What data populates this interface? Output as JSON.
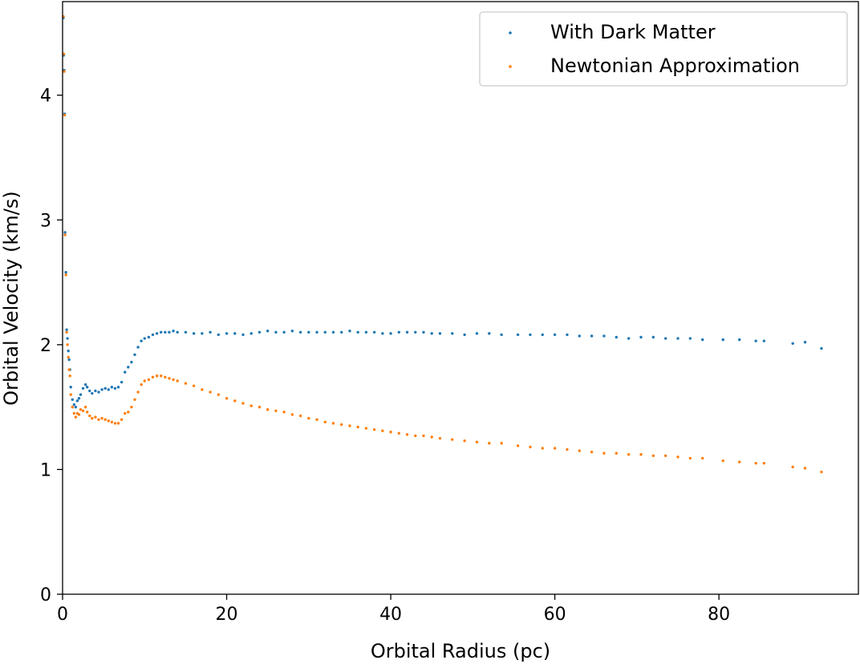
{
  "chart_data": {
    "type": "scatter",
    "title": "",
    "xlabel": "Orbital Radius (pc)",
    "ylabel": "Orbital Velocity (km/s)",
    "xlim": [
      0,
      97
    ],
    "ylim": [
      0,
      4.75
    ],
    "x_ticks": [
      0,
      20,
      40,
      60,
      80
    ],
    "y_ticks": [
      0,
      1,
      2,
      3,
      4
    ],
    "grid": false,
    "legend_position": "top-right",
    "series": [
      {
        "name": "With Dark Matter",
        "color": "#1f77b4",
        "x": [
          0.1,
          0.15,
          0.2,
          0.25,
          0.3,
          0.4,
          0.5,
          0.6,
          0.7,
          0.8,
          0.9,
          1.0,
          1.2,
          1.4,
          1.6,
          1.8,
          2.0,
          2.2,
          2.5,
          2.8,
          3.0,
          3.3,
          3.6,
          4.0,
          4.4,
          4.8,
          5.2,
          5.6,
          6.0,
          6.4,
          6.8,
          7.2,
          7.6,
          8.0,
          8.4,
          8.8,
          9.2,
          9.6,
          10.0,
          10.5,
          11.0,
          11.5,
          12.0,
          12.5,
          13.0,
          13.5,
          14.0,
          15.0,
          16.0,
          17.0,
          18.0,
          19.0,
          20.0,
          21.0,
          22.0,
          23.0,
          24.0,
          25.0,
          26.0,
          27.0,
          28.0,
          29.0,
          30.0,
          31.0,
          32.0,
          33.0,
          34.0,
          35.0,
          36.0,
          37.0,
          38.0,
          39.0,
          40.0,
          41.0,
          42.0,
          43.0,
          44.0,
          45.0,
          46.0,
          47.5,
          49.0,
          50.5,
          52.0,
          53.5,
          55.5,
          57.0,
          58.5,
          60.0,
          61.5,
          63.0,
          64.5,
          66.0,
          67.5,
          69.0,
          70.5,
          72.0,
          73.5,
          75.0,
          76.5,
          78.0,
          80.5,
          82.5,
          84.5,
          85.5,
          89.0,
          90.5,
          92.5
        ],
        "y": [
          4.62,
          4.32,
          4.2,
          3.85,
          2.9,
          2.58,
          2.12,
          2.05,
          1.95,
          1.88,
          1.8,
          1.66,
          1.56,
          1.52,
          1.5,
          1.55,
          1.57,
          1.6,
          1.65,
          1.68,
          1.66,
          1.63,
          1.61,
          1.63,
          1.62,
          1.64,
          1.65,
          1.64,
          1.66,
          1.65,
          1.66,
          1.7,
          1.78,
          1.82,
          1.86,
          1.92,
          1.98,
          2.03,
          2.05,
          2.06,
          2.08,
          2.09,
          2.1,
          2.1,
          2.1,
          2.11,
          2.1,
          2.1,
          2.09,
          2.09,
          2.1,
          2.08,
          2.09,
          2.09,
          2.08,
          2.09,
          2.1,
          2.11,
          2.1,
          2.1,
          2.11,
          2.1,
          2.1,
          2.1,
          2.1,
          2.1,
          2.1,
          2.11,
          2.1,
          2.1,
          2.1,
          2.09,
          2.09,
          2.1,
          2.1,
          2.1,
          2.1,
          2.09,
          2.09,
          2.09,
          2.08,
          2.09,
          2.09,
          2.08,
          2.08,
          2.08,
          2.08,
          2.08,
          2.08,
          2.07,
          2.07,
          2.07,
          2.06,
          2.05,
          2.06,
          2.06,
          2.05,
          2.05,
          2.05,
          2.04,
          2.04,
          2.04,
          2.03,
          2.03,
          2.01,
          2.02,
          1.97
        ]
      },
      {
        "name": "Newtonian Approximation",
        "color": "#ff7f0e",
        "x": [
          0.1,
          0.15,
          0.2,
          0.25,
          0.3,
          0.4,
          0.5,
          0.6,
          0.7,
          0.8,
          0.9,
          1.0,
          1.2,
          1.4,
          1.6,
          1.8,
          2.0,
          2.2,
          2.5,
          2.8,
          3.0,
          3.3,
          3.6,
          4.0,
          4.4,
          4.8,
          5.2,
          5.6,
          6.0,
          6.4,
          6.8,
          7.2,
          7.6,
          8.0,
          8.4,
          8.8,
          9.2,
          9.6,
          10.0,
          10.5,
          11.0,
          11.5,
          12.0,
          12.5,
          13.0,
          13.5,
          14.0,
          15.0,
          16.0,
          17.0,
          18.0,
          19.0,
          20.0,
          21.0,
          22.0,
          23.0,
          24.0,
          25.0,
          26.0,
          27.0,
          28.0,
          29.0,
          30.0,
          31.0,
          32.0,
          33.0,
          34.0,
          35.0,
          36.0,
          37.0,
          38.0,
          39.0,
          40.0,
          41.0,
          42.0,
          43.0,
          44.0,
          45.0,
          46.0,
          47.5,
          49.0,
          50.5,
          52.0,
          53.5,
          55.5,
          57.0,
          58.5,
          60.0,
          61.5,
          63.0,
          64.5,
          66.0,
          67.5,
          69.0,
          70.5,
          72.0,
          73.5,
          75.0,
          76.5,
          78.0,
          80.5,
          82.5,
          84.5,
          85.5,
          89.0,
          90.5,
          92.5
        ],
        "y": [
          4.63,
          4.33,
          4.19,
          3.84,
          2.88,
          2.56,
          2.1,
          2.0,
          1.9,
          1.8,
          1.75,
          1.6,
          1.5,
          1.45,
          1.42,
          1.45,
          1.44,
          1.48,
          1.47,
          1.5,
          1.46,
          1.43,
          1.41,
          1.42,
          1.4,
          1.41,
          1.4,
          1.39,
          1.38,
          1.37,
          1.37,
          1.4,
          1.45,
          1.46,
          1.5,
          1.56,
          1.62,
          1.68,
          1.71,
          1.72,
          1.74,
          1.75,
          1.75,
          1.74,
          1.73,
          1.72,
          1.71,
          1.69,
          1.67,
          1.64,
          1.62,
          1.6,
          1.57,
          1.55,
          1.53,
          1.51,
          1.5,
          1.48,
          1.47,
          1.46,
          1.44,
          1.43,
          1.41,
          1.4,
          1.38,
          1.37,
          1.36,
          1.35,
          1.34,
          1.33,
          1.32,
          1.31,
          1.3,
          1.29,
          1.28,
          1.27,
          1.27,
          1.26,
          1.25,
          1.24,
          1.23,
          1.22,
          1.21,
          1.21,
          1.19,
          1.18,
          1.17,
          1.17,
          1.16,
          1.15,
          1.14,
          1.13,
          1.13,
          1.12,
          1.12,
          1.11,
          1.11,
          1.1,
          1.09,
          1.09,
          1.07,
          1.06,
          1.05,
          1.05,
          1.02,
          1.01,
          0.98
        ]
      }
    ]
  }
}
